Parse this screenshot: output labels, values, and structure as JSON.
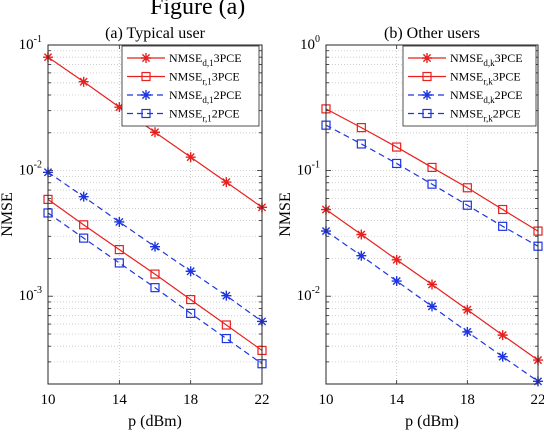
{
  "figure_fragment": "Figure (a)",
  "chart_data": [
    {
      "type": "line",
      "title": "(a) Typical user",
      "xlabel": "p (dBm)",
      "ylabel": "NMSE",
      "xlim": [
        10,
        22
      ],
      "ylim": [
        0.0002,
        0.1
      ],
      "yscale": "log",
      "xticks": [
        10,
        14,
        18,
        22
      ],
      "yticks": [
        {
          "value": 0.001,
          "base": "10",
          "exp": "-3"
        },
        {
          "value": 0.01,
          "base": "10",
          "exp": "-2"
        },
        {
          "value": 0.1,
          "base": "10",
          "exp": "-1"
        }
      ],
      "grid": "dotted",
      "legend_position": "top-right",
      "x": [
        10,
        12,
        14,
        16,
        18,
        20,
        22
      ],
      "series": [
        {
          "name_main": "NMSE",
          "name_sub": "d,1",
          "name_tail": "3PCE",
          "color": "#e8201e",
          "dash": "solid",
          "marker": "star",
          "values": [
            0.08,
            0.051,
            0.032,
            0.0202,
            0.0128,
            0.0081,
            0.0051
          ]
        },
        {
          "name_main": "NMSE",
          "name_sub": "r,1",
          "name_tail": "3PCE",
          "color": "#e8201e",
          "dash": "solid",
          "marker": "square",
          "values": [
            0.0059,
            0.0037,
            0.00235,
            0.0015,
            0.00094,
            0.00059,
            0.00037
          ]
        },
        {
          "name_main": "NMSE",
          "name_sub": "d,1",
          "name_tail": "2PCE",
          "color": "#1f35e0",
          "dash": "dashed",
          "marker": "star",
          "values": [
            0.0097,
            0.0062,
            0.0039,
            0.00248,
            0.00158,
            0.00101,
            0.00063
          ]
        },
        {
          "name_main": "NMSE",
          "name_sub": "r,1",
          "name_tail": "2PCE",
          "color": "#1f35e0",
          "dash": "dashed",
          "marker": "square",
          "values": [
            0.0046,
            0.0029,
            0.00184,
            0.00117,
            0.00073,
            0.00046,
            0.00029
          ]
        }
      ]
    },
    {
      "type": "line",
      "title": "(b) Other users",
      "xlabel": "p (dBm)",
      "ylabel": "NMSE",
      "xlim": [
        10,
        22
      ],
      "ylim": [
        0.002,
        1
      ],
      "yscale": "log",
      "xticks": [
        10,
        14,
        18,
        22
      ],
      "yticks": [
        {
          "value": 0.01,
          "base": "10",
          "exp": "-2"
        },
        {
          "value": 0.1,
          "base": "10",
          "exp": "-1"
        },
        {
          "value": 1,
          "base": "10",
          "exp": "0"
        }
      ],
      "grid": "dotted",
      "legend_position": "top-right",
      "x": [
        10,
        12,
        14,
        16,
        18,
        20,
        22
      ],
      "series": [
        {
          "name_main": "NMSE",
          "name_sub": "d,k",
          "name_tail": "3PCE",
          "color": "#e8201e",
          "dash": "solid",
          "marker": "star",
          "values": [
            0.049,
            0.031,
            0.0195,
            0.0124,
            0.0078,
            0.0049,
            0.0031
          ]
        },
        {
          "name_main": "NMSE",
          "name_sub": "r,k",
          "name_tail": "3PCE",
          "color": "#e8201e",
          "dash": "solid",
          "marker": "square",
          "values": [
            0.31,
            0.22,
            0.154,
            0.106,
            0.073,
            0.049,
            0.033
          ]
        },
        {
          "name_main": "NMSE",
          "name_sub": "d,k",
          "name_tail": "2PCE",
          "color": "#1f35e0",
          "dash": "dashed",
          "marker": "star",
          "values": [
            0.033,
            0.021,
            0.0132,
            0.0083,
            0.0052,
            0.0033,
            0.0021
          ]
        },
        {
          "name_main": "NMSE",
          "name_sub": "r,k",
          "name_tail": "2PCE",
          "color": "#1f35e0",
          "dash": "dashed",
          "marker": "square",
          "values": [
            0.23,
            0.163,
            0.114,
            0.078,
            0.053,
            0.036,
            0.025
          ]
        }
      ]
    }
  ]
}
